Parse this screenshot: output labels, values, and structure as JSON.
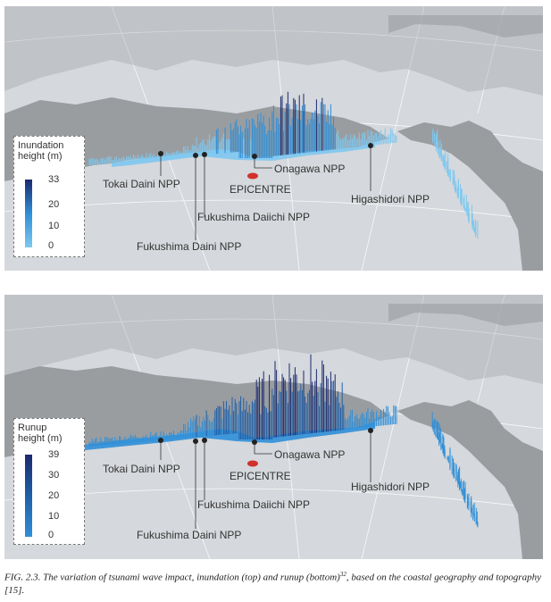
{
  "panels": [
    {
      "legend": {
        "title_line1": "Inundation",
        "title_line2": "height (m)",
        "ticks": [
          "33",
          "20",
          "10",
          "0"
        ]
      },
      "labels": {
        "tokai": "Tokai Daini NPP",
        "epicentre": "EPICENTRE",
        "onagawa": "Onagawa NPP",
        "fukushima_daiichi": "Fukushima Daiichi NPP",
        "fukushima_daini": "Fukushima Daini NPP",
        "higashidori": "Higashidori NPP"
      }
    },
    {
      "legend": {
        "title_line1": "Runup",
        "title_line2": "height (m)",
        "ticks": [
          "39",
          "30",
          "20",
          "10",
          "0"
        ]
      },
      "labels": {
        "tokai": "Tokai Daini NPP",
        "epicentre": "EPICENTRE",
        "onagawa": "Onagawa NPP",
        "fukushima_daiichi": "Fukushima Daiichi NPP",
        "fukushima_daini": "Fukushima Daini NPP",
        "higashidori": "Higashidori NPP"
      }
    }
  ],
  "caption": {
    "text_before": "FIG. 2.3. The variation of tsunami wave impact, inundation (top) and runup (bottom)",
    "ref": "32",
    "text_after": ", based on the coastal geography and topography [15]."
  },
  "colors": {
    "ocean": "#d5d8dc",
    "land": "#9a9da0",
    "bar_light": "#7ec8f0",
    "bar_mid": "#2f8fd8",
    "bar_dark": "#1b2a6e",
    "epicentre": "#d0312d"
  }
}
